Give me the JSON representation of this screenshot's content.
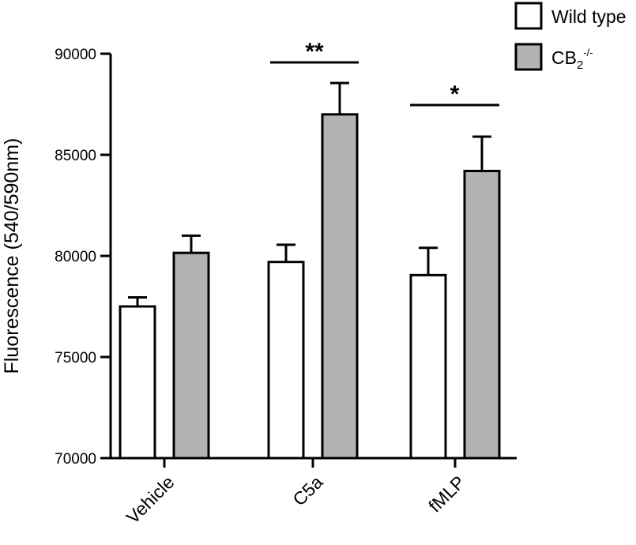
{
  "chart_data": {
    "type": "bar",
    "title": "",
    "xlabel": "",
    "ylabel": "Fluorescence (540/590nm)",
    "ylim": [
      70000,
      90000
    ],
    "yticks": [
      "70000",
      "75000",
      "80000",
      "85000",
      "90000"
    ],
    "categories": [
      "Vehicle",
      "C5a",
      "fMLP"
    ],
    "series": [
      {
        "name": "Wild type",
        "color": "#ffffff",
        "values": [
          77500,
          79700,
          79050
        ],
        "errors": [
          450,
          850,
          1350
        ]
      },
      {
        "name_base": "CB",
        "name_sub": "2",
        "name_sup": "-/-",
        "color": "#b3b3b3",
        "values": [
          80150,
          87000,
          84200
        ],
        "errors": [
          850,
          1550,
          1700
        ]
      }
    ],
    "significance": [
      {
        "category": "C5a",
        "label": "**"
      },
      {
        "category": "fMLP",
        "label": "*"
      }
    ],
    "legend_position": "top-right",
    "grid": false
  }
}
